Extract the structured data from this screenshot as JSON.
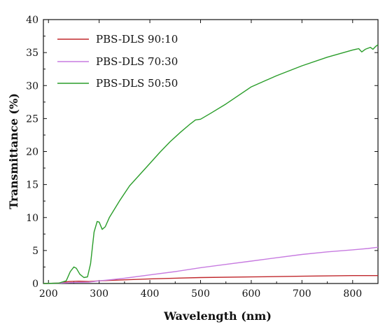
{
  "chart_data": {
    "type": "line",
    "xlabel": "Wavelength (nm)",
    "ylabel": "Transmittance (%)",
    "xlim": [
      190,
      850
    ],
    "ylim": [
      0,
      40
    ],
    "xticks": [
      200,
      300,
      400,
      500,
      600,
      700,
      800
    ],
    "yticks": [
      0,
      5,
      10,
      15,
      20,
      25,
      30,
      35,
      40
    ],
    "grid": false,
    "legend_position": "top-left",
    "series": [
      {
        "name": "PBS-DLS 90:10",
        "color": "#c0282d",
        "points": [
          [
            190,
            0.0
          ],
          [
            220,
            0.05
          ],
          [
            240,
            0.3
          ],
          [
            260,
            0.35
          ],
          [
            280,
            0.3
          ],
          [
            300,
            0.4
          ],
          [
            330,
            0.5
          ],
          [
            400,
            0.7
          ],
          [
            500,
            0.9
          ],
          [
            600,
            1.0
          ],
          [
            700,
            1.1
          ],
          [
            800,
            1.2
          ],
          [
            850,
            1.2
          ]
        ]
      },
      {
        "name": "PBS-DLS 70:30",
        "color": "#c77be0",
        "points": [
          [
            190,
            0.0
          ],
          [
            220,
            0.05
          ],
          [
            250,
            0.15
          ],
          [
            280,
            0.2
          ],
          [
            300,
            0.4
          ],
          [
            320,
            0.55
          ],
          [
            350,
            0.8
          ],
          [
            400,
            1.3
          ],
          [
            450,
            1.8
          ],
          [
            500,
            2.4
          ],
          [
            550,
            2.9
          ],
          [
            600,
            3.4
          ],
          [
            650,
            3.9
          ],
          [
            700,
            4.4
          ],
          [
            750,
            4.8
          ],
          [
            800,
            5.1
          ],
          [
            830,
            5.3
          ],
          [
            850,
            5.5
          ]
        ]
      },
      {
        "name": "PBS-DLS 50:50",
        "color": "#2a9d2a",
        "points": [
          [
            190,
            0.0
          ],
          [
            220,
            0.05
          ],
          [
            235,
            0.4
          ],
          [
            243,
            1.8
          ],
          [
            250,
            2.5
          ],
          [
            255,
            2.3
          ],
          [
            262,
            1.4
          ],
          [
            270,
            0.9
          ],
          [
            277,
            1.0
          ],
          [
            283,
            3.0
          ],
          [
            290,
            7.8
          ],
          [
            296,
            9.4
          ],
          [
            300,
            9.3
          ],
          [
            306,
            8.2
          ],
          [
            312,
            8.6
          ],
          [
            320,
            10.0
          ],
          [
            340,
            12.5
          ],
          [
            360,
            14.8
          ],
          [
            380,
            16.5
          ],
          [
            400,
            18.2
          ],
          [
            420,
            19.9
          ],
          [
            440,
            21.5
          ],
          [
            460,
            22.9
          ],
          [
            480,
            24.2
          ],
          [
            490,
            24.8
          ],
          [
            500,
            24.9
          ],
          [
            520,
            25.8
          ],
          [
            550,
            27.2
          ],
          [
            600,
            29.8
          ],
          [
            650,
            31.5
          ],
          [
            700,
            33.0
          ],
          [
            750,
            34.3
          ],
          [
            800,
            35.4
          ],
          [
            812,
            35.6
          ],
          [
            818,
            35.1
          ],
          [
            825,
            35.5
          ],
          [
            835,
            35.8
          ],
          [
            840,
            35.5
          ],
          [
            845,
            35.9
          ],
          [
            850,
            36.2
          ]
        ]
      }
    ]
  }
}
